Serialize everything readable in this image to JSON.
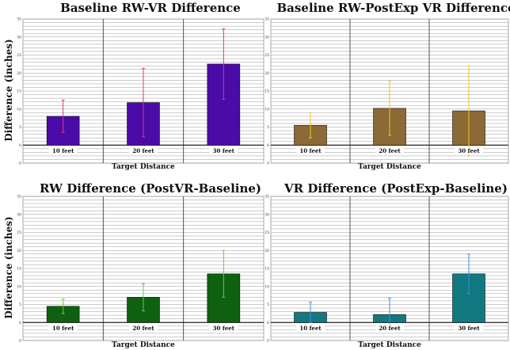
{
  "chart_data": [
    {
      "type": "bar",
      "title": "Baseline RW-VR Difference",
      "xlabel": "Target Distance",
      "ylabel": "Difference (inches)",
      "categories": [
        "10 feet",
        "20 feet",
        "30 feet"
      ],
      "values": [
        8,
        11.8,
        22.5
      ],
      "error": [
        4.5,
        9.5,
        9.8
      ],
      "ylim": [
        -5,
        35
      ],
      "yticks": [
        -5,
        0,
        5,
        10,
        15,
        20,
        25,
        30,
        35
      ],
      "grid": true,
      "bar_color": "#4a0ba6",
      "error_color": "#e0358a"
    },
    {
      "type": "bar",
      "title": "Baseline RW-PostExp VR Difference",
      "xlabel": "Target Distance",
      "ylabel": "",
      "categories": [
        "10 feet",
        "20 feet",
        "30 feet"
      ],
      "values": [
        5.5,
        10.2,
        9.5
      ],
      "error": [
        3.5,
        7.5,
        12.5
      ],
      "ylim": [
        -5,
        35
      ],
      "yticks": [
        -5,
        0,
        5,
        10,
        15,
        20,
        25,
        30,
        35
      ],
      "grid": true,
      "bar_color": "#8b6a35",
      "error_color": "#f2c41a"
    },
    {
      "type": "bar",
      "title": "RW Difference (PostVR-Baseline)",
      "xlabel": "Target Distance",
      "ylabel": "Difference (inches)",
      "categories": [
        "10 feet",
        "20 feet",
        "30 feet"
      ],
      "values": [
        4.5,
        7,
        13.5
      ],
      "error": [
        2,
        3.8,
        6.5
      ],
      "ylim": [
        -5,
        35
      ],
      "yticks": [
        -5,
        0,
        5,
        10,
        15,
        20,
        25,
        30,
        35
      ],
      "grid": true,
      "bar_color": "#0f6010",
      "error_color": "#5fcf45"
    },
    {
      "type": "bar",
      "title": "VR Difference (PostExp-Baseline)",
      "xlabel": "Target Distance",
      "ylabel": "",
      "categories": [
        "10 feet",
        "20 feet",
        "30 feet"
      ],
      "values": [
        2.8,
        2.2,
        13.5
      ],
      "error": [
        2.8,
        4.5,
        5.5
      ],
      "ylim": [
        -5,
        35
      ],
      "yticks": [
        -5,
        0,
        5,
        10,
        15,
        20,
        25,
        30,
        35
      ],
      "grid": true,
      "bar_color": "#107a80",
      "error_color": "#3a8ee0"
    }
  ]
}
